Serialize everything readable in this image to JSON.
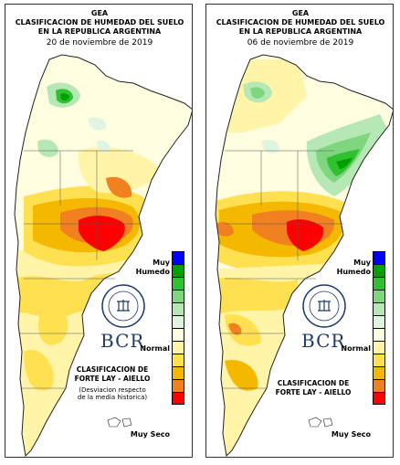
{
  "colors": {
    "very_humid": "#0000ff",
    "humid_1": "#00a000",
    "humid_2": "#30c030",
    "humid_3": "#7fd67f",
    "humid_4": "#b5e8b5",
    "normal_1": "#e0f5e0",
    "normal_2": "#fffde0",
    "dry_1": "#fff4a8",
    "dry_2": "#ffe050",
    "dry_3": "#f5b800",
    "dry_4": "#f08020",
    "very_dry": "#ff0000"
  },
  "panels": [
    {
      "header_org": "GEA",
      "header_line1": "CLASIFICACION DE HUMEDAD DEL SUELO",
      "header_line2": "EN LA REPUBLICA ARGENTINA",
      "date": "20 de noviembre de 2019",
      "logo_text": "BCR",
      "seal_text": "BOLSA DE COMERCIO DE ROSARIO",
      "scale_top": "Muy Humedo",
      "scale_mid": "Normal",
      "scale_bottom": "Muy Seco",
      "classification_line1": "CLASIFICACION DE",
      "classification_line2": "FORTE LAY - AIELLO",
      "note_line1": "(Desviacion respecto",
      "note_line2": "de la media historica)"
    },
    {
      "header_org": "GEA",
      "header_line1": "CLASIFICACION DE HUMEDAD DEL SUELO",
      "header_line2": "EN LA REPUBLICA ARGENTINA",
      "date": "06 de noviembre de 2019",
      "logo_text": "BCR",
      "seal_text": "BOLSA DE COMERCIO DE ROSARIO",
      "scale_top": "Muy Humedo",
      "scale_mid": "Normal",
      "scale_bottom": "Muy Seco",
      "classification_line1": "CLASIFICACION DE",
      "classification_line2": "FORTE LAY - AIELLO"
    }
  ]
}
